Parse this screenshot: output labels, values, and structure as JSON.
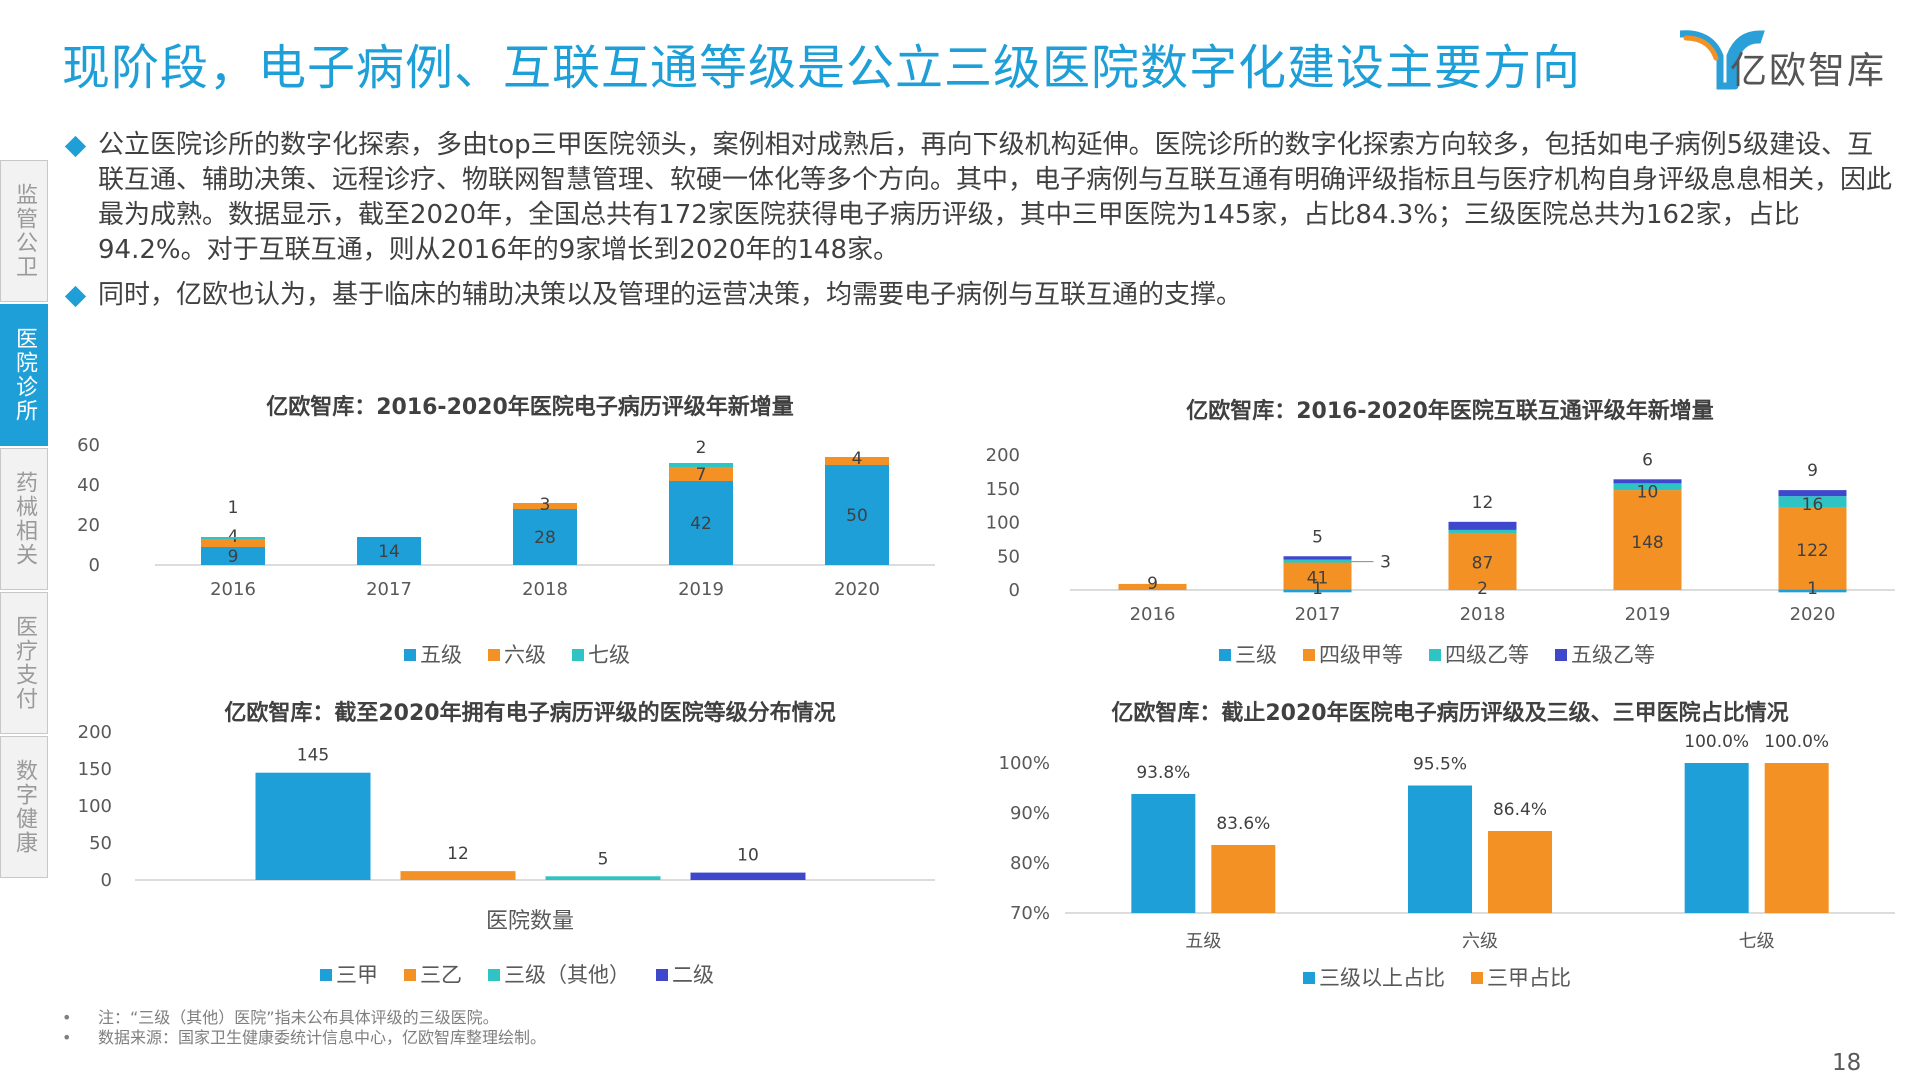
{
  "page": {
    "title": "现阶段，电子病例、互联互通等级是公立三级医院数字化建设主要方向",
    "logo_text": "亿欧智库",
    "page_number": "18",
    "bullets": [
      "公立医院诊所的数字化探索，多由top三甲医院领头，案例相对成熟后，再向下级机构延伸。医院诊所的数字化探索方向较多，包括如电子病例5级建设、互联互通、辅助决策、远程诊疗、物联网智慧管理、软硬一体化等多个方向。其中，电子病例与互联互通有明确评级指标且与医疗机构自身评级息息相关，因此最为成熟。数据显示，截至2020年，全国总共有172家医院获得电子病历评级，其中三甲医院为145家，占比84.3%；三级医院总共为162家，占比94.2%。对于互联互通，则从2016年的9家增长到2020年的148家。",
      "同时，亿欧也认为，基于临床的辅助决策以及管理的运营决策，均需要电子病例与互联互通的支撑。"
    ],
    "notes": [
      "注：“三级（其他）医院”指未公布具体评级的三级医院。",
      "数据来源：国家卫生健康委统计信息中心，亿欧智库整理绘制。"
    ],
    "note_bullet": "•"
  },
  "sidenav": {
    "items": [
      {
        "label": "监管公卫",
        "active": false
      },
      {
        "label": "医院诊所",
        "active": true
      },
      {
        "label": "药械相关",
        "active": false
      },
      {
        "label": "医疗支付",
        "active": false
      },
      {
        "label": "数字健康",
        "active": false
      }
    ]
  },
  "colors": {
    "blue": "#1e9fd8",
    "orange": "#f39124",
    "teal": "#2ec4c4",
    "navy": "#3f48cc"
  },
  "chart_data": [
    {
      "type": "bar",
      "stacked": true,
      "title": "亿欧智库：2016-2020年医院电子病历评级年新增量",
      "categories": [
        "2016",
        "2017",
        "2018",
        "2019",
        "2020"
      ],
      "ylim": [
        0,
        60
      ],
      "yticks": [
        "0",
        "20",
        "40",
        "60"
      ],
      "legend_position": "bottom",
      "series": [
        {
          "name": "五级",
          "values": [
            9,
            14,
            28,
            42,
            50
          ],
          "color": "#1e9fd8"
        },
        {
          "name": "六级",
          "values": [
            4,
            0,
            3,
            7,
            4
          ],
          "color": "#f39124"
        },
        {
          "name": "七级",
          "values": [
            1,
            0,
            0,
            2,
            0
          ],
          "color": "#2ec4c4"
        }
      ]
    },
    {
      "type": "bar",
      "stacked": true,
      "title": "亿欧智库：2016-2020年医院互联互通评级年新增量",
      "categories": [
        "2016",
        "2017",
        "2018",
        "2019",
        "2020"
      ],
      "ylim": [
        0,
        200
      ],
      "yticks": [
        "0",
        "50",
        "100",
        "150",
        "200"
      ],
      "legend_position": "bottom",
      "series": [
        {
          "name": "三级",
          "values": [
            0,
            1,
            0,
            0,
            1
          ],
          "color": "#1e9fd8"
        },
        {
          "name": "四级甲等",
          "values": [
            9,
            41,
            87,
            148,
            122
          ],
          "color": "#f39124"
        },
        {
          "name": "四级乙等",
          "values": [
            0,
            3,
            2,
            10,
            16
          ],
          "color": "#2ec4c4"
        },
        {
          "name": "五级乙等",
          "values": [
            0,
            5,
            12,
            6,
            9
          ],
          "color": "#3f48cc"
        }
      ]
    },
    {
      "type": "bar",
      "title": "亿欧智库：截至2020年拥有电子病历评级的医院等级分布情况",
      "xlabel": "医院数量",
      "ylim": [
        0,
        200
      ],
      "yticks": [
        "0",
        "50",
        "100",
        "150",
        "200"
      ],
      "legend_position": "bottom",
      "series": [
        {
          "name": "三甲",
          "values": [
            145
          ],
          "color": "#1e9fd8"
        },
        {
          "name": "三乙",
          "values": [
            12
          ],
          "color": "#f39124"
        },
        {
          "name": "三级（其他）",
          "values": [
            5
          ],
          "color": "#2ec4c4"
        },
        {
          "name": "二级",
          "values": [
            10
          ],
          "color": "#3f48cc"
        }
      ]
    },
    {
      "type": "bar",
      "title": "亿欧智库：截止2020年医院电子病历评级及三级、三甲医院占比情况",
      "categories": [
        "五级",
        "六级",
        "七级"
      ],
      "ylim": [
        70,
        100
      ],
      "yticks": [
        "70%",
        "80%",
        "90%",
        "100%"
      ],
      "legend_position": "bottom",
      "series": [
        {
          "name": "三级以上占比",
          "values": [
            93.8,
            95.5,
            100.0
          ],
          "labels": [
            "93.8%",
            "95.5%",
            "100.0%"
          ],
          "color": "#1e9fd8"
        },
        {
          "name": "三甲占比",
          "values": [
            83.6,
            86.4,
            100.0
          ],
          "labels": [
            "83.6%",
            "86.4%",
            "100.0%"
          ],
          "color": "#f39124"
        }
      ]
    }
  ]
}
